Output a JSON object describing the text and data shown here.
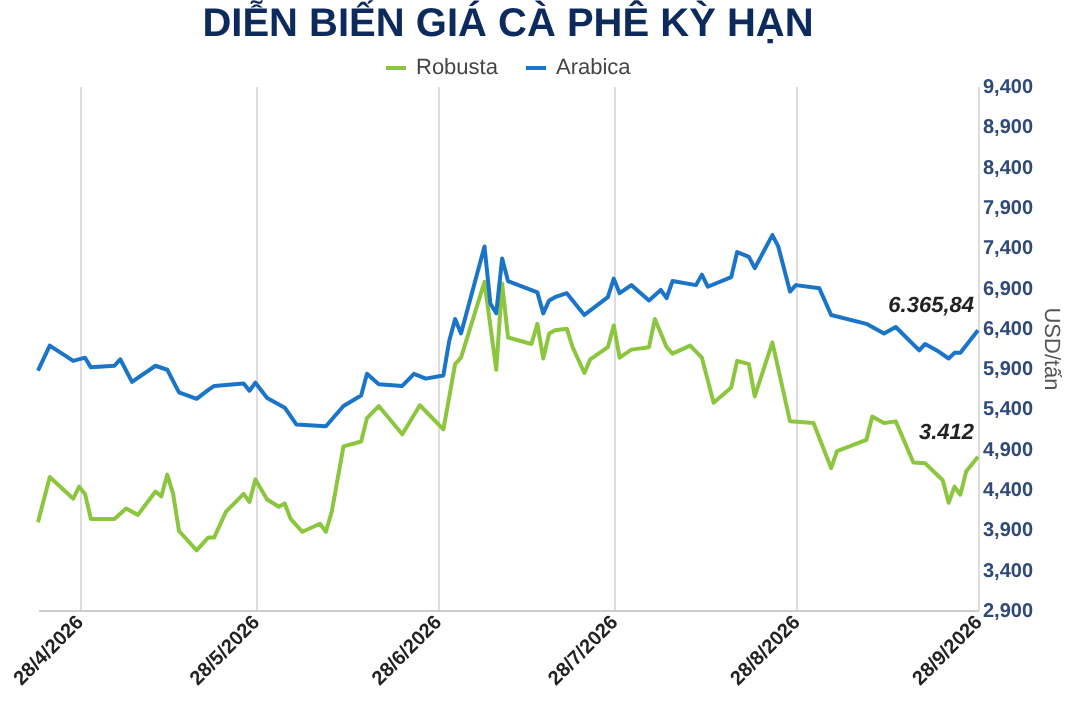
{
  "chart_data": {
    "type": "line",
    "title": "DIỄN BIẾN GIÁ CÀ PHÊ KỲ HẠN",
    "ylabel": "USD/tấn",
    "xlim": [
      "2026-04-21",
      "2026-09-28"
    ],
    "xticks": [
      {
        "value": "2026-04-28",
        "label": "28/4/2026"
      },
      {
        "value": "2026-05-28",
        "label": "28/5/2026"
      },
      {
        "value": "2026-06-28",
        "label": "28/6/2026"
      },
      {
        "value": "2026-07-28",
        "label": "28/7/2026"
      },
      {
        "value": "2026-08-28",
        "label": "28/8/2026"
      },
      {
        "value": "2026-09-28",
        "label": "28/9/2026"
      }
    ],
    "ylim": [
      2900,
      9400
    ],
    "yticks": [
      {
        "value": 2900,
        "label": "2,900"
      },
      {
        "value": 3400,
        "label": "3,400"
      },
      {
        "value": 3900,
        "label": "3,900"
      },
      {
        "value": 4400,
        "label": "4,400"
      },
      {
        "value": 4900,
        "label": "4,900"
      },
      {
        "value": 5400,
        "label": "5,400"
      },
      {
        "value": 5900,
        "label": "5,900"
      },
      {
        "value": 6400,
        "label": "6,400"
      },
      {
        "value": 6900,
        "label": "6,900"
      },
      {
        "value": 7400,
        "label": "7,400"
      },
      {
        "value": 7900,
        "label": "7,900"
      },
      {
        "value": 8400,
        "label": "8,400"
      },
      {
        "value": 8900,
        "label": "8,900"
      },
      {
        "value": 9400,
        "label": "9,400"
      }
    ],
    "grid": "x",
    "legend": "top",
    "marker": "none",
    "line_style": "solid",
    "series": [
      {
        "name": "Robusta",
        "color": "#8cc63f",
        "x": [
          "2026-04-21",
          "2026-04-23",
          "2026-04-27",
          "2026-04-28",
          "2026-04-29",
          "2026-04-30",
          "2026-05-04",
          "2026-05-06",
          "2026-05-08",
          "2026-05-11",
          "2026-05-12",
          "2026-05-13",
          "2026-05-14",
          "2026-05-15",
          "2026-05-18",
          "2026-05-20",
          "2026-05-21",
          "2026-05-23",
          "2026-05-26",
          "2026-05-27",
          "2026-05-28",
          "2026-05-30",
          "2026-06-01",
          "2026-06-02",
          "2026-06-03",
          "2026-06-05",
          "2026-06-08",
          "2026-06-09",
          "2026-06-10",
          "2026-06-12",
          "2026-06-15",
          "2026-06-16",
          "2026-06-18",
          "2026-06-22",
          "2026-06-25",
          "2026-06-29",
          "2026-07-01",
          "2026-07-02",
          "2026-07-06",
          "2026-07-08",
          "2026-07-09",
          "2026-07-10",
          "2026-07-14",
          "2026-07-15",
          "2026-07-16",
          "2026-07-17",
          "2026-07-18",
          "2026-07-20",
          "2026-07-21",
          "2026-07-23",
          "2026-07-24",
          "2026-07-27",
          "2026-07-28",
          "2026-07-29",
          "2026-07-31",
          "2026-08-03",
          "2026-08-04",
          "2026-08-06",
          "2026-08-07",
          "2026-08-10",
          "2026-08-12",
          "2026-08-14",
          "2026-08-17",
          "2026-08-18",
          "2026-08-20",
          "2026-08-21",
          "2026-08-24",
          "2026-08-27",
          "2026-08-31",
          "2026-09-03",
          "2026-09-04",
          "2026-09-09",
          "2026-09-10",
          "2026-09-12",
          "2026-09-14",
          "2026-09-17",
          "2026-09-19",
          "2026-09-22",
          "2026-09-23",
          "2026-09-24",
          "2026-09-25",
          "2026-09-26",
          "2026-09-28"
        ],
        "values": [
          3990,
          4550,
          4280,
          4430,
          4340,
          4030,
          4030,
          4160,
          4080,
          4370,
          4310,
          4580,
          4340,
          3880,
          3640,
          3800,
          3800,
          4120,
          4340,
          4240,
          4520,
          4270,
          4180,
          4220,
          4030,
          3870,
          3970,
          3870,
          4120,
          4930,
          4990,
          5280,
          5430,
          5080,
          5440,
          5140,
          5950,
          6030,
          6970,
          5880,
          6950,
          6280,
          6200,
          6450,
          6020,
          6330,
          6370,
          6390,
          6160,
          5840,
          6010,
          6160,
          6430,
          6030,
          6130,
          6160,
          6510,
          6160,
          6080,
          6180,
          6030,
          5470,
          5660,
          5990,
          5950,
          5550,
          6220,
          5240,
          5220,
          4660,
          4870,
          5010,
          5300,
          5220,
          5240,
          4730,
          4720,
          4510,
          4230,
          4430,
          4330,
          4620,
          4800
        ]
      },
      {
        "name": "Arabica",
        "color": "#1a75c8",
        "x": [
          "2026-04-21",
          "2026-04-23",
          "2026-04-27",
          "2026-04-29",
          "2026-04-30",
          "2026-05-04",
          "2026-05-05",
          "2026-05-07",
          "2026-05-11",
          "2026-05-13",
          "2026-05-15",
          "2026-05-18",
          "2026-05-20",
          "2026-05-21",
          "2026-05-26",
          "2026-05-27",
          "2026-05-28",
          "2026-05-30",
          "2026-06-02",
          "2026-06-04",
          "2026-06-09",
          "2026-06-12",
          "2026-06-15",
          "2026-06-16",
          "2026-06-18",
          "2026-06-22",
          "2026-06-24",
          "2026-06-26",
          "2026-06-29",
          "2026-06-30",
          "2026-07-01",
          "2026-07-02",
          "2026-07-06",
          "2026-07-07",
          "2026-07-08",
          "2026-07-09",
          "2026-07-10",
          "2026-07-15",
          "2026-07-16",
          "2026-07-17",
          "2026-07-18",
          "2026-07-20",
          "2026-07-23",
          "2026-07-27",
          "2026-07-28",
          "2026-07-29",
          "2026-07-31",
          "2026-08-03",
          "2026-08-05",
          "2026-08-06",
          "2026-08-07",
          "2026-08-11",
          "2026-08-12",
          "2026-08-13",
          "2026-08-17",
          "2026-08-18",
          "2026-08-20",
          "2026-08-21",
          "2026-08-24",
          "2026-08-25",
          "2026-08-27",
          "2026-08-28",
          "2026-09-01",
          "2026-09-03",
          "2026-09-09",
          "2026-09-12",
          "2026-09-14",
          "2026-09-18",
          "2026-09-19",
          "2026-09-21",
          "2026-09-23",
          "2026-09-24",
          "2026-09-25",
          "2026-09-28"
        ],
        "values": [
          5870,
          6180,
          5990,
          6030,
          5910,
          5930,
          6010,
          5730,
          5930,
          5880,
          5600,
          5520,
          5630,
          5680,
          5710,
          5620,
          5720,
          5530,
          5410,
          5200,
          5180,
          5430,
          5560,
          5830,
          5700,
          5680,
          5830,
          5770,
          5810,
          6240,
          6510,
          6330,
          7410,
          6700,
          6580,
          7260,
          6980,
          6840,
          6580,
          6740,
          6780,
          6830,
          6560,
          6780,
          7010,
          6830,
          6930,
          6740,
          6870,
          6770,
          6980,
          6930,
          7060,
          6910,
          7030,
          7340,
          7280,
          7140,
          7550,
          7410,
          6850,
          6930,
          6890,
          6560,
          6450,
          6330,
          6410,
          6120,
          6200,
          6120,
          6020,
          6090,
          6090,
          6370
        ]
      }
    ],
    "annotations": [
      {
        "text": "6.365,84",
        "x": "2026-09-28",
        "y": 6370
      },
      {
        "text": "3.412",
        "x": "2026-09-28",
        "y": 4800
      }
    ]
  }
}
